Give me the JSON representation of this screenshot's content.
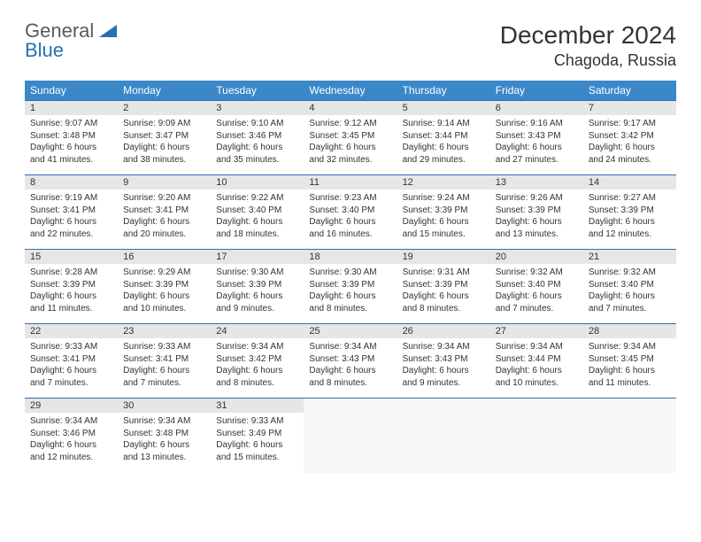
{
  "brand": {
    "name1": "General",
    "name2": "Blue"
  },
  "title": "December 2024",
  "location": "Chagoda, Russia",
  "colors": {
    "header_bg": "#3b87c8",
    "header_text": "#ffffff",
    "daynum_bg": "#e6e6e6",
    "border": "#2a6fb5",
    "text": "#333333",
    "brand_gray": "#5a5a5a",
    "brand_blue": "#2a6fb5"
  },
  "weekdays": [
    "Sunday",
    "Monday",
    "Tuesday",
    "Wednesday",
    "Thursday",
    "Friday",
    "Saturday"
  ],
  "weeks": [
    [
      {
        "n": "1",
        "sr": "Sunrise: 9:07 AM",
        "ss": "Sunset: 3:48 PM",
        "d1": "Daylight: 6 hours",
        "d2": "and 41 minutes."
      },
      {
        "n": "2",
        "sr": "Sunrise: 9:09 AM",
        "ss": "Sunset: 3:47 PM",
        "d1": "Daylight: 6 hours",
        "d2": "and 38 minutes."
      },
      {
        "n": "3",
        "sr": "Sunrise: 9:10 AM",
        "ss": "Sunset: 3:46 PM",
        "d1": "Daylight: 6 hours",
        "d2": "and 35 minutes."
      },
      {
        "n": "4",
        "sr": "Sunrise: 9:12 AM",
        "ss": "Sunset: 3:45 PM",
        "d1": "Daylight: 6 hours",
        "d2": "and 32 minutes."
      },
      {
        "n": "5",
        "sr": "Sunrise: 9:14 AM",
        "ss": "Sunset: 3:44 PM",
        "d1": "Daylight: 6 hours",
        "d2": "and 29 minutes."
      },
      {
        "n": "6",
        "sr": "Sunrise: 9:16 AM",
        "ss": "Sunset: 3:43 PM",
        "d1": "Daylight: 6 hours",
        "d2": "and 27 minutes."
      },
      {
        "n": "7",
        "sr": "Sunrise: 9:17 AM",
        "ss": "Sunset: 3:42 PM",
        "d1": "Daylight: 6 hours",
        "d2": "and 24 minutes."
      }
    ],
    [
      {
        "n": "8",
        "sr": "Sunrise: 9:19 AM",
        "ss": "Sunset: 3:41 PM",
        "d1": "Daylight: 6 hours",
        "d2": "and 22 minutes."
      },
      {
        "n": "9",
        "sr": "Sunrise: 9:20 AM",
        "ss": "Sunset: 3:41 PM",
        "d1": "Daylight: 6 hours",
        "d2": "and 20 minutes."
      },
      {
        "n": "10",
        "sr": "Sunrise: 9:22 AM",
        "ss": "Sunset: 3:40 PM",
        "d1": "Daylight: 6 hours",
        "d2": "and 18 minutes."
      },
      {
        "n": "11",
        "sr": "Sunrise: 9:23 AM",
        "ss": "Sunset: 3:40 PM",
        "d1": "Daylight: 6 hours",
        "d2": "and 16 minutes."
      },
      {
        "n": "12",
        "sr": "Sunrise: 9:24 AM",
        "ss": "Sunset: 3:39 PM",
        "d1": "Daylight: 6 hours",
        "d2": "and 15 minutes."
      },
      {
        "n": "13",
        "sr": "Sunrise: 9:26 AM",
        "ss": "Sunset: 3:39 PM",
        "d1": "Daylight: 6 hours",
        "d2": "and 13 minutes."
      },
      {
        "n": "14",
        "sr": "Sunrise: 9:27 AM",
        "ss": "Sunset: 3:39 PM",
        "d1": "Daylight: 6 hours",
        "d2": "and 12 minutes."
      }
    ],
    [
      {
        "n": "15",
        "sr": "Sunrise: 9:28 AM",
        "ss": "Sunset: 3:39 PM",
        "d1": "Daylight: 6 hours",
        "d2": "and 11 minutes."
      },
      {
        "n": "16",
        "sr": "Sunrise: 9:29 AM",
        "ss": "Sunset: 3:39 PM",
        "d1": "Daylight: 6 hours",
        "d2": "and 10 minutes."
      },
      {
        "n": "17",
        "sr": "Sunrise: 9:30 AM",
        "ss": "Sunset: 3:39 PM",
        "d1": "Daylight: 6 hours",
        "d2": "and 9 minutes."
      },
      {
        "n": "18",
        "sr": "Sunrise: 9:30 AM",
        "ss": "Sunset: 3:39 PM",
        "d1": "Daylight: 6 hours",
        "d2": "and 8 minutes."
      },
      {
        "n": "19",
        "sr": "Sunrise: 9:31 AM",
        "ss": "Sunset: 3:39 PM",
        "d1": "Daylight: 6 hours",
        "d2": "and 8 minutes."
      },
      {
        "n": "20",
        "sr": "Sunrise: 9:32 AM",
        "ss": "Sunset: 3:40 PM",
        "d1": "Daylight: 6 hours",
        "d2": "and 7 minutes."
      },
      {
        "n": "21",
        "sr": "Sunrise: 9:32 AM",
        "ss": "Sunset: 3:40 PM",
        "d1": "Daylight: 6 hours",
        "d2": "and 7 minutes."
      }
    ],
    [
      {
        "n": "22",
        "sr": "Sunrise: 9:33 AM",
        "ss": "Sunset: 3:41 PM",
        "d1": "Daylight: 6 hours",
        "d2": "and 7 minutes."
      },
      {
        "n": "23",
        "sr": "Sunrise: 9:33 AM",
        "ss": "Sunset: 3:41 PM",
        "d1": "Daylight: 6 hours",
        "d2": "and 7 minutes."
      },
      {
        "n": "24",
        "sr": "Sunrise: 9:34 AM",
        "ss": "Sunset: 3:42 PM",
        "d1": "Daylight: 6 hours",
        "d2": "and 8 minutes."
      },
      {
        "n": "25",
        "sr": "Sunrise: 9:34 AM",
        "ss": "Sunset: 3:43 PM",
        "d1": "Daylight: 6 hours",
        "d2": "and 8 minutes."
      },
      {
        "n": "26",
        "sr": "Sunrise: 9:34 AM",
        "ss": "Sunset: 3:43 PM",
        "d1": "Daylight: 6 hours",
        "d2": "and 9 minutes."
      },
      {
        "n": "27",
        "sr": "Sunrise: 9:34 AM",
        "ss": "Sunset: 3:44 PM",
        "d1": "Daylight: 6 hours",
        "d2": "and 10 minutes."
      },
      {
        "n": "28",
        "sr": "Sunrise: 9:34 AM",
        "ss": "Sunset: 3:45 PM",
        "d1": "Daylight: 6 hours",
        "d2": "and 11 minutes."
      }
    ],
    [
      {
        "n": "29",
        "sr": "Sunrise: 9:34 AM",
        "ss": "Sunset: 3:46 PM",
        "d1": "Daylight: 6 hours",
        "d2": "and 12 minutes."
      },
      {
        "n": "30",
        "sr": "Sunrise: 9:34 AM",
        "ss": "Sunset: 3:48 PM",
        "d1": "Daylight: 6 hours",
        "d2": "and 13 minutes."
      },
      {
        "n": "31",
        "sr": "Sunrise: 9:33 AM",
        "ss": "Sunset: 3:49 PM",
        "d1": "Daylight: 6 hours",
        "d2": "and 15 minutes."
      },
      null,
      null,
      null,
      null
    ]
  ]
}
